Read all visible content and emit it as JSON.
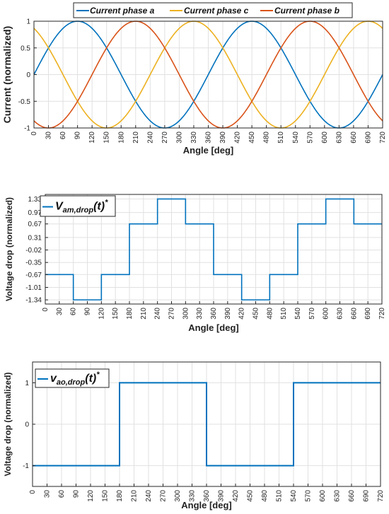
{
  "chart_data": [
    {
      "type": "line",
      "xlabel": "Angle [deg]",
      "ylabel": "Current (normalized)",
      "xlim": [
        0,
        720
      ],
      "ylim": [
        -1,
        1
      ],
      "x_ticks": [
        0,
        30,
        60,
        90,
        120,
        150,
        180,
        210,
        240,
        270,
        300,
        330,
        360,
        390,
        420,
        450,
        480,
        510,
        540,
        570,
        600,
        630,
        660,
        690,
        720
      ],
      "y_ticks": [
        1,
        0.5,
        0,
        -0.5,
        -1
      ],
      "y_tick_labels": [
        "1",
        "0.5",
        "0",
        "-0.5",
        "-1"
      ],
      "grid": true,
      "legend": "top",
      "series": [
        {
          "name": "Current phase a",
          "function": "sin",
          "phase_deg": 0,
          "color": "#0072BD"
        },
        {
          "name": "Current phase c",
          "function": "sin",
          "phase_deg": 120,
          "color": "#EDB120"
        },
        {
          "name": "Current phase b",
          "function": "sin",
          "phase_deg": -120,
          "color": "#D95319"
        }
      ]
    },
    {
      "type": "line",
      "xlabel": "Angle [deg]",
      "ylabel": "Voltage drop (normalized)",
      "xlim": [
        0,
        720
      ],
      "ylim": [
        -1.45,
        1.45
      ],
      "x_ticks": [
        0,
        30,
        60,
        90,
        120,
        150,
        180,
        210,
        240,
        270,
        300,
        330,
        360,
        390,
        420,
        450,
        480,
        510,
        540,
        570,
        600,
        630,
        660,
        690,
        720
      ],
      "y_ticks": [
        1.33,
        0.97,
        0.67,
        0.31,
        -0.02,
        -0.35,
        -0.67,
        -1.01,
        -1.34
      ],
      "y_tick_labels": [
        "1.33",
        "0.97",
        "0.67",
        "0.31",
        "-0.02",
        "-0.35",
        "-0.67",
        "-1.01",
        "-1.34"
      ],
      "grid": true,
      "legend": "top-left",
      "legend_label": {
        "main": "V",
        "sub": "am,drop",
        "suffix": "(t)",
        "sup": "*"
      },
      "series": [
        {
          "color": "#0072BD",
          "x": [
            0,
            60,
            60,
            120,
            120,
            180,
            180,
            240,
            240,
            300,
            300,
            360,
            360,
            420,
            420,
            480,
            480,
            540,
            540,
            600,
            600,
            660,
            660,
            720
          ],
          "y": [
            -0.67,
            -0.67,
            -1.34,
            -1.34,
            -0.67,
            -0.67,
            0.67,
            0.67,
            1.33,
            1.33,
            0.67,
            0.67,
            -0.67,
            -0.67,
            -1.34,
            -1.34,
            -0.67,
            -0.67,
            0.67,
            0.67,
            1.33,
            1.33,
            0.67,
            0.67
          ]
        }
      ]
    },
    {
      "type": "line",
      "xlabel": "Angle [deg]",
      "ylabel": "Voltage drop (normalized)",
      "xlim": [
        0,
        720
      ],
      "ylim": [
        -1.5,
        1.5
      ],
      "x_ticks": [
        0,
        30,
        60,
        90,
        120,
        150,
        180,
        210,
        240,
        270,
        300,
        330,
        360,
        390,
        420,
        450,
        480,
        510,
        540,
        570,
        600,
        630,
        660,
        690,
        720
      ],
      "y_ticks": [
        1,
        0,
        -1
      ],
      "y_tick_labels": [
        "1",
        "0",
        "-1"
      ],
      "grid": true,
      "legend": "top-left",
      "legend_label": {
        "main": "v",
        "sub": "ao,drop",
        "suffix": "(t)",
        "sup": "*"
      },
      "series": [
        {
          "color": "#0072BD",
          "x": [
            0,
            180,
            180,
            360,
            360,
            540,
            540,
            720
          ],
          "y": [
            -1,
            -1,
            1,
            1,
            -1,
            -1,
            1,
            1
          ]
        }
      ]
    }
  ]
}
